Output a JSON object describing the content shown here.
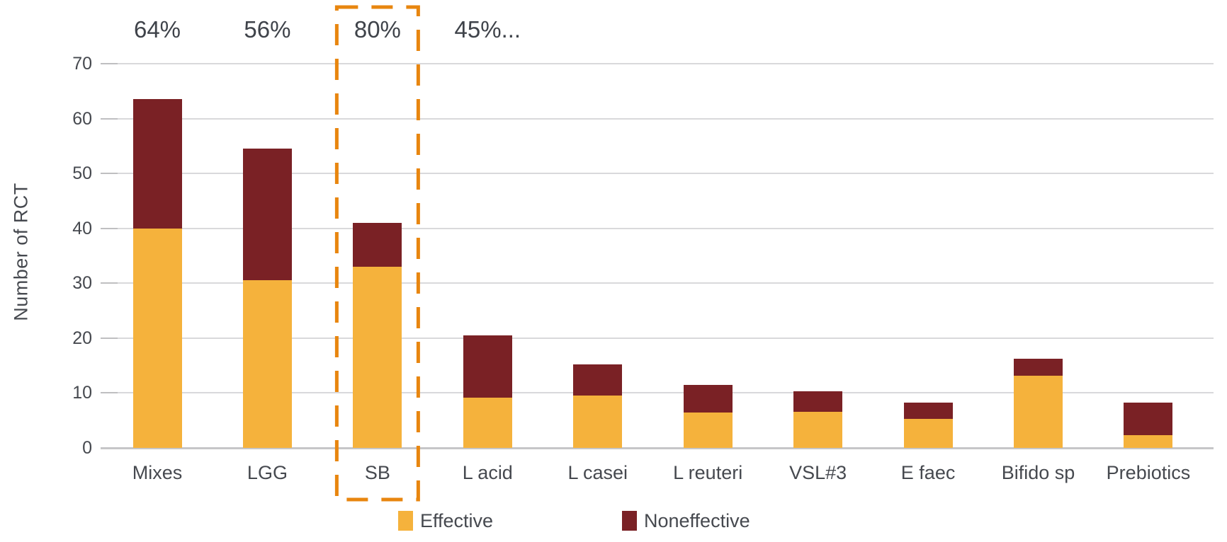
{
  "chart_data": {
    "type": "bar",
    "stacked": true,
    "ylabel": "Number of RCT",
    "ylim": [
      0,
      70
    ],
    "yticks": [
      0,
      10,
      20,
      30,
      40,
      50,
      60,
      70
    ],
    "grid": true,
    "legend_position": "bottom",
    "categories": [
      "Mixes",
      "LGG",
      "SB",
      "L acid",
      "L casei",
      "L reuteri",
      "VSL#3",
      "E faec",
      "Bifido sp",
      "Prebiotics"
    ],
    "series": [
      {
        "name": "Effective",
        "color": "#F5B23C",
        "values": [
          40.0,
          30.5,
          33.0,
          9.2,
          9.6,
          6.4,
          6.6,
          5.3,
          13.1,
          2.3
        ]
      },
      {
        "name": "Noneffective",
        "color": "#7A2125",
        "values": [
          23.5,
          24.0,
          8.0,
          11.3,
          5.6,
          5.1,
          3.7,
          2.9,
          3.1,
          6.0
        ]
      }
    ],
    "annotations": [
      {
        "text": "64%",
        "category_index": 0
      },
      {
        "text": "56%",
        "category_index": 1
      },
      {
        "text": "80%",
        "category_index": 2
      },
      {
        "text": "45%...",
        "category_index": 3
      }
    ],
    "highlight": {
      "category_index": 2,
      "style": "dashed-box",
      "color": "#E8860F"
    }
  },
  "colors": {
    "background": "#FFFFFF",
    "gridline": "#D9D9DB",
    "baseline": "#C6C6C8",
    "axis_text": "#46494F",
    "annotation_text": "#3F434A",
    "effective": "#F5B23C",
    "noneffective": "#7A2125",
    "highlight_box": "#E8860F"
  }
}
